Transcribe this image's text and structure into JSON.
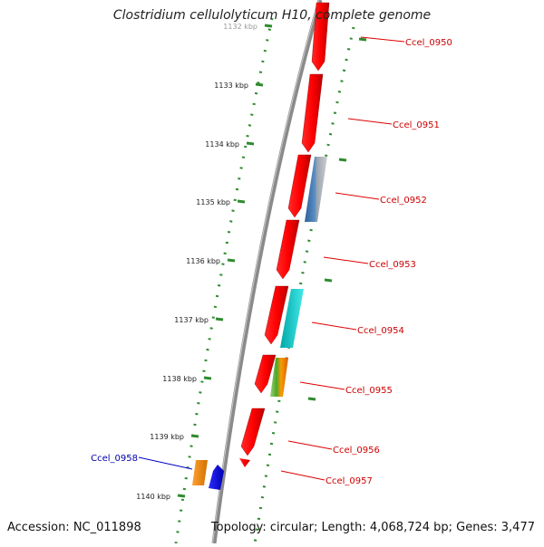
{
  "title": "Clostridium cellulolyticum H10, complete genome",
  "footer": {
    "accession": "Accession: NC_011898",
    "summary": "Topology: circular; Length: 4,068,724 bp; Genes: 3,477"
  },
  "ticks": [
    "1132 kbp",
    "1133 kbp",
    "1134 kbp",
    "1135 kbp",
    "1136 kbp",
    "1137 kbp",
    "1138 kbp",
    "1139 kbp",
    "1140 kbp"
  ],
  "genes": [
    {
      "name": "Ccel_0950",
      "color": "#cc0000"
    },
    {
      "name": "Ccel_0951",
      "color": "#cc0000"
    },
    {
      "name": "Ccel_0952",
      "color": "#cc0000"
    },
    {
      "name": "Ccel_0953",
      "color": "#cc0000"
    },
    {
      "name": "Ccel_0954",
      "color": "#cc0000"
    },
    {
      "name": "Ccel_0955",
      "color": "#cc0000"
    },
    {
      "name": "Ccel_0956",
      "color": "#cc0000"
    },
    {
      "name": "Ccel_0957",
      "color": "#cc0000"
    },
    {
      "name": "Ccel_0958",
      "color": "#0000aa"
    }
  ],
  "colors": {
    "backbone": "#8a8a8a",
    "ring": "#2e8b2e",
    "forward_gene": "#ff0000",
    "reverse_gene_blue": "#0000ee",
    "reverse_gene_orange": "#ff8c00",
    "cog_steelblue": "#4682b4",
    "cog_gray": "#b0b0b0",
    "cog_cyan": "#00cccc",
    "cog_green": "#66bb44",
    "cog_orange": "#ff9900"
  }
}
